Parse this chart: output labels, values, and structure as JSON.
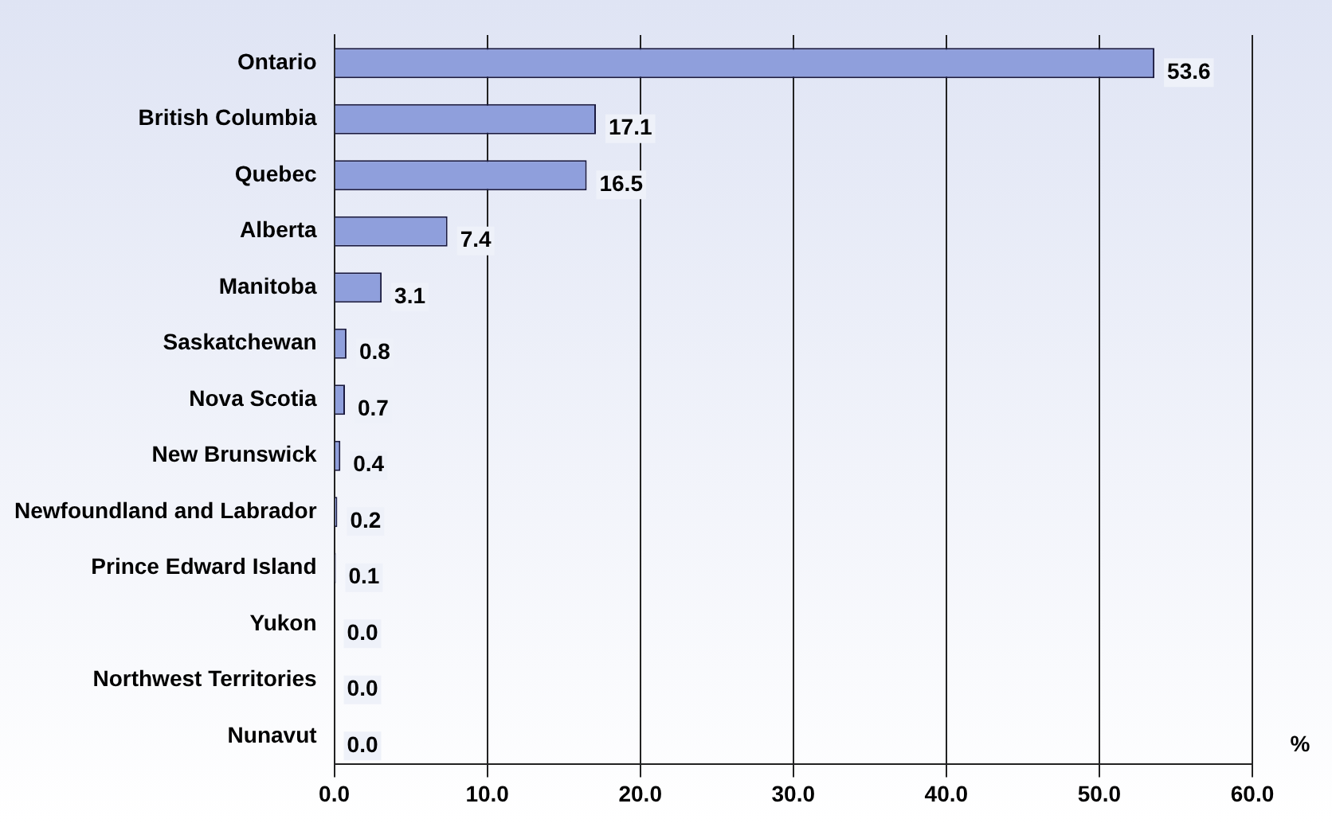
{
  "chart_data": {
    "type": "bar",
    "orientation": "horizontal",
    "categories": [
      "Ontario",
      "British Columbia",
      "Quebec",
      "Alberta",
      "Manitoba",
      "Saskatchewan",
      "Nova Scotia",
      "New Brunswick",
      "Newfoundland and Labrador",
      "Prince Edward Island",
      "Yukon",
      "Northwest Territories",
      "Nunavut"
    ],
    "values": [
      53.6,
      17.1,
      16.5,
      7.4,
      3.1,
      0.8,
      0.7,
      0.4,
      0.2,
      0.1,
      0.0,
      0.0,
      0.0
    ],
    "value_labels": [
      "53.6",
      "17.1",
      "16.5",
      "7.4",
      "3.1",
      "0.8",
      "0.7",
      "0.4",
      "0.2",
      "0.1",
      "0.0",
      "0.0",
      "0.0"
    ],
    "color": "#8f9fdc",
    "xlim": [
      0,
      60
    ],
    "xticks": [
      {
        "value": 0,
        "label": "0.0"
      },
      {
        "value": 10,
        "label": "10.0"
      },
      {
        "value": 20,
        "label": "20.0"
      },
      {
        "value": 30,
        "label": "30.0"
      },
      {
        "value": 40,
        "label": "40.0"
      },
      {
        "value": 50,
        "label": "50.0"
      },
      {
        "value": 60,
        "label": "60.0"
      }
    ],
    "xlabel": "%",
    "grid": "x"
  }
}
